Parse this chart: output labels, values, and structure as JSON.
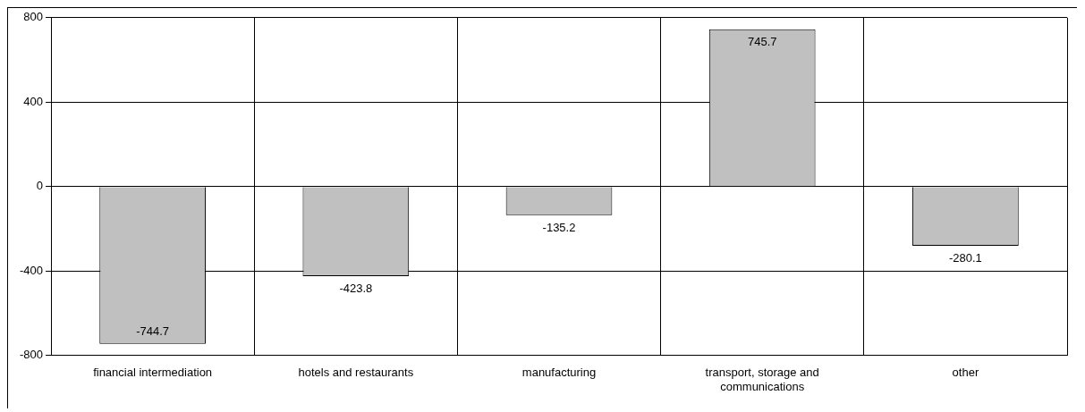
{
  "chart_data": {
    "type": "bar",
    "categories": [
      "financial intermediation",
      "hotels and restaurants",
      "manufacturing",
      "transport, storage and communications",
      "other"
    ],
    "values": [
      -744.7,
      -423.8,
      -135.2,
      745.7,
      -280.1
    ],
    "color": "#c0c0c0",
    "ylim": [
      -800,
      800
    ],
    "yticks": [
      -800,
      -400,
      0,
      400,
      800
    ],
    "grid": true,
    "data_labels": true
  }
}
